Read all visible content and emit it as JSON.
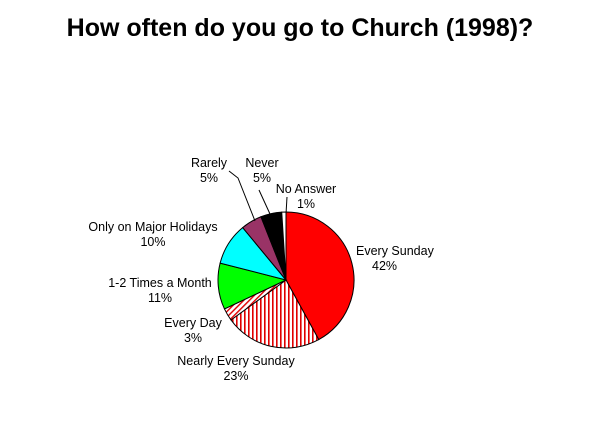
{
  "chart_data": {
    "type": "pie",
    "title": "How often do you go to Church (1998)?",
    "categories": [
      "Every Sunday",
      "Nearly Every Sunday",
      "Every Day",
      "1-2 Times a Month",
      "Only on Major Holidays",
      "Rarely",
      "Never",
      "No Answer"
    ],
    "values": [
      42,
      23,
      3,
      11,
      10,
      5,
      5,
      1
    ],
    "value_labels": [
      "42%",
      "23%",
      "3%",
      "11%",
      "10%",
      "5%",
      "5%",
      "1%"
    ],
    "colors": [
      "#ff0000",
      "#ffffff",
      "#ffffff",
      "#00ff00",
      "#00ffff",
      "#993366",
      "#000000",
      "#ffffff"
    ],
    "fills": [
      "solid",
      "red-vertical-stripes",
      "red-diagonal-stripes",
      "solid",
      "solid",
      "solid",
      "solid",
      "solid"
    ],
    "start_angle": "12 o'clock",
    "direction": "clockwise",
    "legend": "none"
  }
}
